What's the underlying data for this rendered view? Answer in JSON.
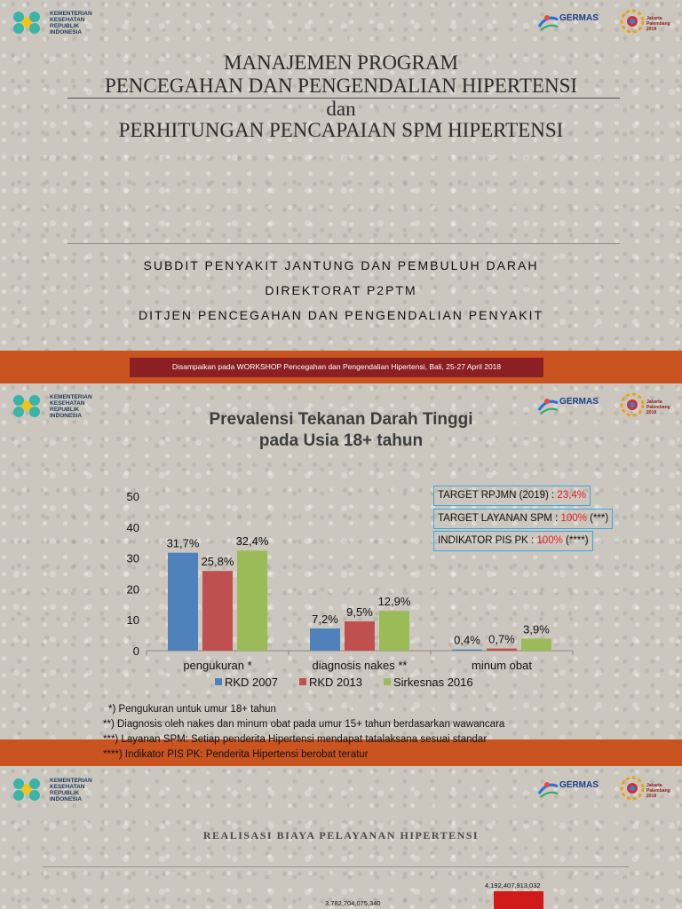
{
  "header": {
    "logo_text": "KEMENTERIAN KESEHATAN REPUBLIK INDONESIA",
    "germas": "GERMAS",
    "asian_games": "Jakarta Palembang 2018"
  },
  "slide1": {
    "title_line1": "MANAJEMEN PROGRAM",
    "title_line2": "PENCEGAHAN DAN PENGENDALIAN HIPERTENSI",
    "title_line3": "dan",
    "title_line4": "PERHITUNGAN PENCAPAIAN SPM HIPERTENSI",
    "sub1": "SUBDIT PENYAKIT JANTUNG DAN PEMBULUH DARAH",
    "sub2": "DIREKTORAT P2PTM",
    "sub3": "DITJEN PENCEGAHAN DAN PENGENDALIAN PENYAKIT",
    "band_text": "Disampaikan pada WORKSHOP Pencegahan dan Pengendalian Hipertensi, Bali, 25-27 April 2018"
  },
  "slide2": {
    "title_line1": "Prevalensi Tekanan Darah Tinggi",
    "title_line2": "pada Usia 18+ tahun",
    "box1_label": "TARGET RPJMN (2019) : ",
    "box1_value": "23,4%",
    "box2_label": "TARGET LAYANAN SPM : ",
    "box2_value": "100%",
    "box2_suffix": " (***)",
    "box3_label": "INDIKATOR PIS PK : ",
    "box3_value": "100%",
    "box3_suffix": " (****)",
    "note1": "*) Pengukuran untuk umur 18+ tahun",
    "note2": "**) Diagnosis oleh nakes dan minum obat pada umur 15+ tahun berdasarkan wawancara",
    "note3": "***) Layanan SPM: Setiap penderita Hipertensi mendapat tatalaksana sesuai standar",
    "note4": "****) Indikator PIS PK: Penderita Hipertensi berobat teratur"
  },
  "slide3": {
    "title": "REALISASI BIAYA PELAYANAN HIPERTENSI",
    "value1": "3,782,704,075,340",
    "value2": "4,192,407,913,032"
  },
  "colors": {
    "s1": "#4f81bd",
    "s2": "#c0504d",
    "s3": "#9bbb59",
    "band": "#c9541f",
    "band_dark": "#8b1f24"
  },
  "chart_data": {
    "type": "bar",
    "categories": [
      "pengukuran *",
      "diagnosis nakes **",
      "minum obat"
    ],
    "series": [
      {
        "name": "RKD 2007",
        "values": [
          31.7,
          7.2,
          0.4
        ],
        "labels": [
          "31,7%",
          "7,2%",
          "0,4%"
        ]
      },
      {
        "name": "RKD 2013",
        "values": [
          25.8,
          9.5,
          0.7
        ],
        "labels": [
          "25,8%",
          "9,5%",
          "0,7%"
        ]
      },
      {
        "name": "Sirkesnas 2016",
        "values": [
          32.4,
          12.9,
          3.9
        ],
        "labels": [
          "32,4%",
          "12,9%",
          "3,9%"
        ]
      }
    ],
    "yticks": [
      "0",
      "10",
      "20",
      "30",
      "40",
      "50"
    ],
    "ylim": [
      0,
      50
    ],
    "legend": "bottom"
  }
}
